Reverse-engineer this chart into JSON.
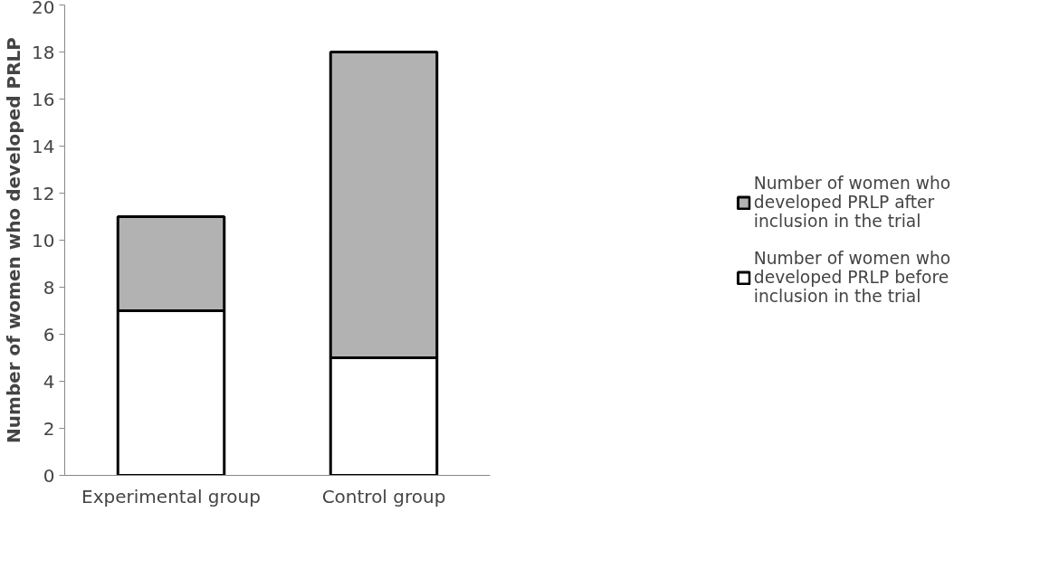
{
  "chart_data": {
    "type": "bar",
    "stacked": true,
    "ylabel": "Number of women who developed PRLP",
    "categories": [
      "Experimental group",
      "Control group"
    ],
    "series": [
      {
        "name": "Number of women who developed PRLP before inclusion in the trial",
        "color": "#ffffff",
        "values": [
          7,
          5
        ]
      },
      {
        "name": "Number of women who developed PRLP after inclusion in the trial",
        "color": "#b2b2b2",
        "values": [
          4,
          13
        ]
      }
    ],
    "ylim": [
      0,
      20
    ],
    "yticks": [
      0,
      2,
      4,
      6,
      8,
      10,
      12,
      14,
      16,
      18,
      20
    ],
    "grid": false,
    "legend": "right"
  }
}
